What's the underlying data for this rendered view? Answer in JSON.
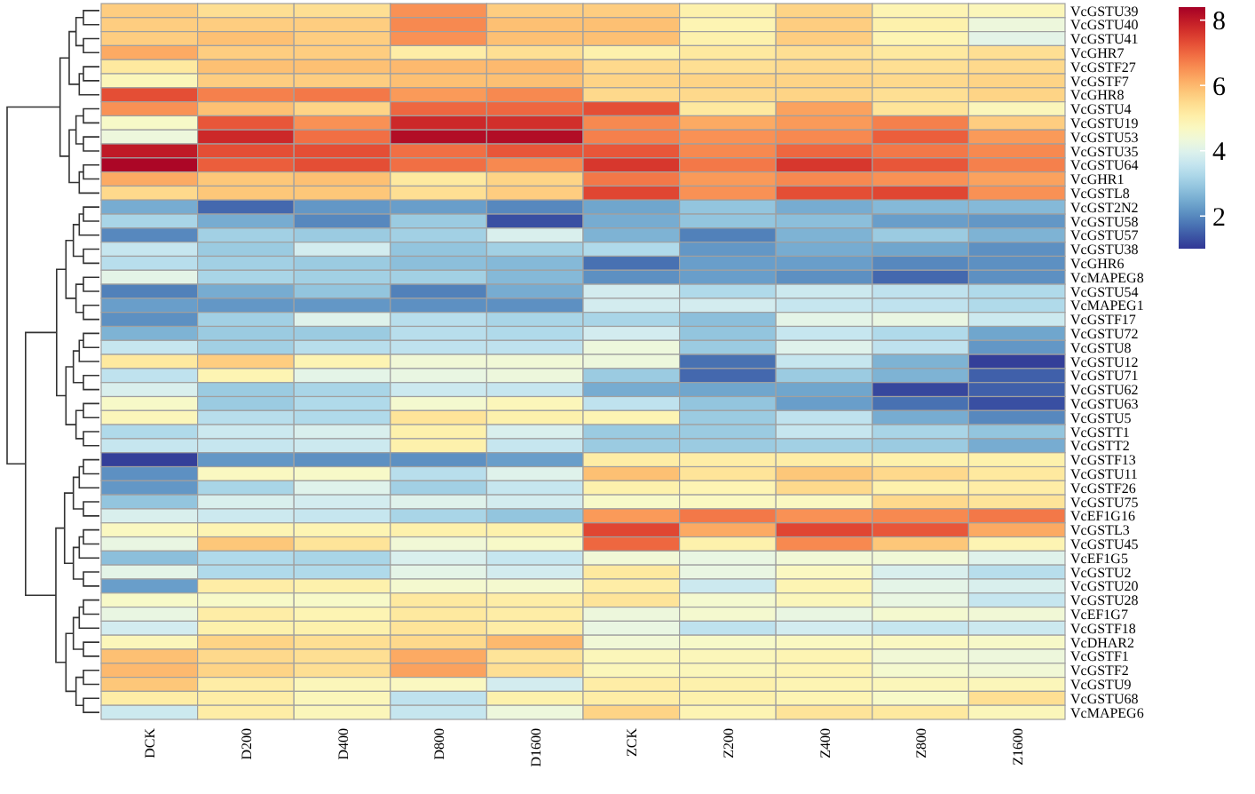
{
  "chart_data": {
    "type": "heatmap",
    "categories": [
      "DCK",
      "D200",
      "D400",
      "D800",
      "D1600",
      "ZCK",
      "Z200",
      "Z400",
      "Z800",
      "Z1600"
    ],
    "y_categories": [
      "VcGSTU39",
      "VcGSTU40",
      "VcGSTU41",
      "VcGHR7",
      "VcGSTF27",
      "VcGSTF7",
      "VcGHR8",
      "VcGSTU4",
      "VcGSTU19",
      "VcGSTU53",
      "VcGSTU35",
      "VcGSTU64",
      "VcGHR1",
      "VcGSTL8",
      "VcGST2N2",
      "VcGSTU58",
      "VcGSTU57",
      "VcGSTU38",
      "VcGHR6",
      "VcMAPEG8",
      "VcGSTU54",
      "VcMAPEG1",
      "VcGSTF17",
      "VcGSTU72",
      "VcGSTU8",
      "VcGSTU12",
      "VcGSTU71",
      "VcGSTU62",
      "VcGSTU63",
      "VcGSTU5",
      "VcGSTT1",
      "VcGSTT2",
      "VcGSTF13",
      "VcGSTU11",
      "VcGSTF26",
      "VcGSTU75",
      "VcEF1G16",
      "VcGSTL3",
      "VcGSTU45",
      "VcEF1G5",
      "VcGSTU2",
      "VcGSTU20",
      "VcGSTU28",
      "VcEF1G7",
      "VcGSTF18",
      "VcDHAR2",
      "VcGSTF1",
      "VcGSTF2",
      "VcGSTU9",
      "VcGSTU68",
      "VcMAPEG6"
    ],
    "cells": [
      [
        5.7,
        5.4,
        5.4,
        6.5,
        5.7,
        5.7,
        5.0,
        5.6,
        4.9,
        4.8
      ],
      [
        5.7,
        5.7,
        5.7,
        6.6,
        5.9,
        5.9,
        4.9,
        5.7,
        5.0,
        4.3
      ],
      [
        5.7,
        5.9,
        5.7,
        6.5,
        5.9,
        5.9,
        5.0,
        5.7,
        4.9,
        4.1
      ],
      [
        6.2,
        5.7,
        5.7,
        5.1,
        5.4,
        5.0,
        5.2,
        5.4,
        5.2,
        5.4
      ],
      [
        5.2,
        5.9,
        5.9,
        6.0,
        6.0,
        5.5,
        5.4,
        5.5,
        5.4,
        5.5
      ],
      [
        4.8,
        5.7,
        5.7,
        5.9,
        5.9,
        5.6,
        5.6,
        5.6,
        5.5,
        5.6
      ],
      [
        7.3,
        6.7,
        6.8,
        6.4,
        6.6,
        5.5,
        5.5,
        5.6,
        5.4,
        5.6
      ],
      [
        6.5,
        5.9,
        5.6,
        7.0,
        7.0,
        7.3,
        5.2,
        6.3,
        5.3,
        4.8
      ],
      [
        4.6,
        7.2,
        6.5,
        7.8,
        7.7,
        6.6,
        6.2,
        6.4,
        6.7,
        5.7
      ],
      [
        4.3,
        7.8,
        6.9,
        8.2,
        8.2,
        6.7,
        6.5,
        6.6,
        7.1,
        6.4
      ],
      [
        8.0,
        7.3,
        7.3,
        6.9,
        7.2,
        7.2,
        6.6,
        7.0,
        6.8,
        6.6
      ],
      [
        8.3,
        7.1,
        7.3,
        6.9,
        6.6,
        7.6,
        6.8,
        7.6,
        7.2,
        6.7
      ],
      [
        6.2,
        5.8,
        5.9,
        5.2,
        5.6,
        6.8,
        6.4,
        6.6,
        6.5,
        6.3
      ],
      [
        5.5,
        5.8,
        5.8,
        5.4,
        5.7,
        7.4,
        6.5,
        7.3,
        7.4,
        6.5
      ],
      [
        2.5,
        1.6,
        2.2,
        2.3,
        2.0,
        2.4,
        2.9,
        2.5,
        2.7,
        2.7
      ],
      [
        3.2,
        2.5,
        2.0,
        3.0,
        1.3,
        2.5,
        2.9,
        2.8,
        2.3,
        2.2
      ],
      [
        2.0,
        3.1,
        3.0,
        3.1,
        3.9,
        2.6,
        1.9,
        2.6,
        3.0,
        2.6
      ],
      [
        3.6,
        3.0,
        3.8,
        2.9,
        3.1,
        3.3,
        2.2,
        2.5,
        2.4,
        2.1
      ],
      [
        3.4,
        3.1,
        3.0,
        2.8,
        2.7,
        1.7,
        2.3,
        2.3,
        2.0,
        2.1
      ],
      [
        4.1,
        3.2,
        3.1,
        3.1,
        2.7,
        2.1,
        2.3,
        2.1,
        1.6,
        2.1
      ],
      [
        1.9,
        2.5,
        2.9,
        1.9,
        2.5,
        3.8,
        3.3,
        3.7,
        3.5,
        3.3
      ],
      [
        2.3,
        2.2,
        2.2,
        2.1,
        2.1,
        3.8,
        3.8,
        3.6,
        3.5,
        3.3
      ],
      [
        2.1,
        3.1,
        4.0,
        3.4,
        3.2,
        3.2,
        2.8,
        4.1,
        4.2,
        3.7
      ],
      [
        2.6,
        3.0,
        3.0,
        3.4,
        3.3,
        3.8,
        2.9,
        3.6,
        3.3,
        2.4
      ],
      [
        3.6,
        3.1,
        3.4,
        3.5,
        3.5,
        4.3,
        3.0,
        4.0,
        3.5,
        2.2
      ],
      [
        5.2,
        5.7,
        4.9,
        4.4,
        4.4,
        4.3,
        1.7,
        3.6,
        2.6,
        1.1
      ],
      [
        3.5,
        4.9,
        4.1,
        4.2,
        4.3,
        3.0,
        1.6,
        3.0,
        2.6,
        1.5
      ],
      [
        3.9,
        3.0,
        3.2,
        3.7,
        3.6,
        2.5,
        2.4,
        2.4,
        1.2,
        1.5
      ],
      [
        4.6,
        3.0,
        3.3,
        4.5,
        4.8,
        3.5,
        2.9,
        2.3,
        1.7,
        1.3
      ],
      [
        4.8,
        3.4,
        3.3,
        5.3,
        5.0,
        4.9,
        3.0,
        3.5,
        2.5,
        2.0
      ],
      [
        3.3,
        3.7,
        3.9,
        5.0,
        3.9,
        3.0,
        3.0,
        3.6,
        3.2,
        2.9
      ],
      [
        3.6,
        3.6,
        3.7,
        5.0,
        3.6,
        3.0,
        3.0,
        3.1,
        3.0,
        2.5
      ],
      [
        1.1,
        2.2,
        2.1,
        2.1,
        2.3,
        5.1,
        5.1,
        5.1,
        5.0,
        5.0
      ],
      [
        2.1,
        4.7,
        4.6,
        3.4,
        4.0,
        5.9,
        5.3,
        5.8,
        5.5,
        5.2
      ],
      [
        2.2,
        3.2,
        4.0,
        3.1,
        3.6,
        5.0,
        4.9,
        5.5,
        5.0,
        5.1
      ],
      [
        2.9,
        3.9,
        3.8,
        4.0,
        3.8,
        4.6,
        4.7,
        4.7,
        5.5,
        5.3
      ],
      [
        3.9,
        3.7,
        3.6,
        3.2,
        2.9,
        6.4,
        6.8,
        6.5,
        6.6,
        6.8
      ],
      [
        4.7,
        4.9,
        4.9,
        5.0,
        5.0,
        7.4,
        6.2,
        7.4,
        7.2,
        6.2
      ],
      [
        4.2,
        5.8,
        5.3,
        4.4,
        4.6,
        7.0,
        5.0,
        6.6,
        5.8,
        4.9
      ],
      [
        2.8,
        3.3,
        3.2,
        3.9,
        3.6,
        4.4,
        4.2,
        4.4,
        4.4,
        4.0
      ],
      [
        4.1,
        3.3,
        3.3,
        4.1,
        3.8,
        5.2,
        4.2,
        4.7,
        3.9,
        3.4
      ],
      [
        2.3,
        5.1,
        5.0,
        4.5,
        4.5,
        5.1,
        3.7,
        4.9,
        4.1,
        3.9
      ],
      [
        4.6,
        4.6,
        4.6,
        5.2,
        5.1,
        5.3,
        4.5,
        4.8,
        4.2,
        3.6
      ],
      [
        4.2,
        5.1,
        4.9,
        5.2,
        5.1,
        4.3,
        4.5,
        4.2,
        4.5,
        4.4
      ],
      [
        3.8,
        5.0,
        5.0,
        5.3,
        5.1,
        4.2,
        3.5,
        3.8,
        3.6,
        3.7
      ],
      [
        4.8,
        5.6,
        5.4,
        5.5,
        6.0,
        4.4,
        4.6,
        4.7,
        4.7,
        4.6
      ],
      [
        5.9,
        5.5,
        5.4,
        6.2,
        5.3,
        4.8,
        4.8,
        4.9,
        4.4,
        4.3
      ],
      [
        6.0,
        5.6,
        5.4,
        6.3,
        5.4,
        4.8,
        4.8,
        4.9,
        4.5,
        4.4
      ],
      [
        5.8,
        5.1,
        4.8,
        4.7,
        3.8,
        5.1,
        5.0,
        4.9,
        4.8,
        4.8
      ],
      [
        5.1,
        5.1,
        4.8,
        3.5,
        5.0,
        5.1,
        5.0,
        4.9,
        4.6,
        5.4
      ],
      [
        3.7,
        5.1,
        4.8,
        3.6,
        4.3,
        5.6,
        4.9,
        5.3,
        5.2,
        4.8
      ]
    ],
    "clim": [
      1,
      8.4
    ],
    "cticks": [
      2,
      4,
      6,
      8
    ]
  }
}
